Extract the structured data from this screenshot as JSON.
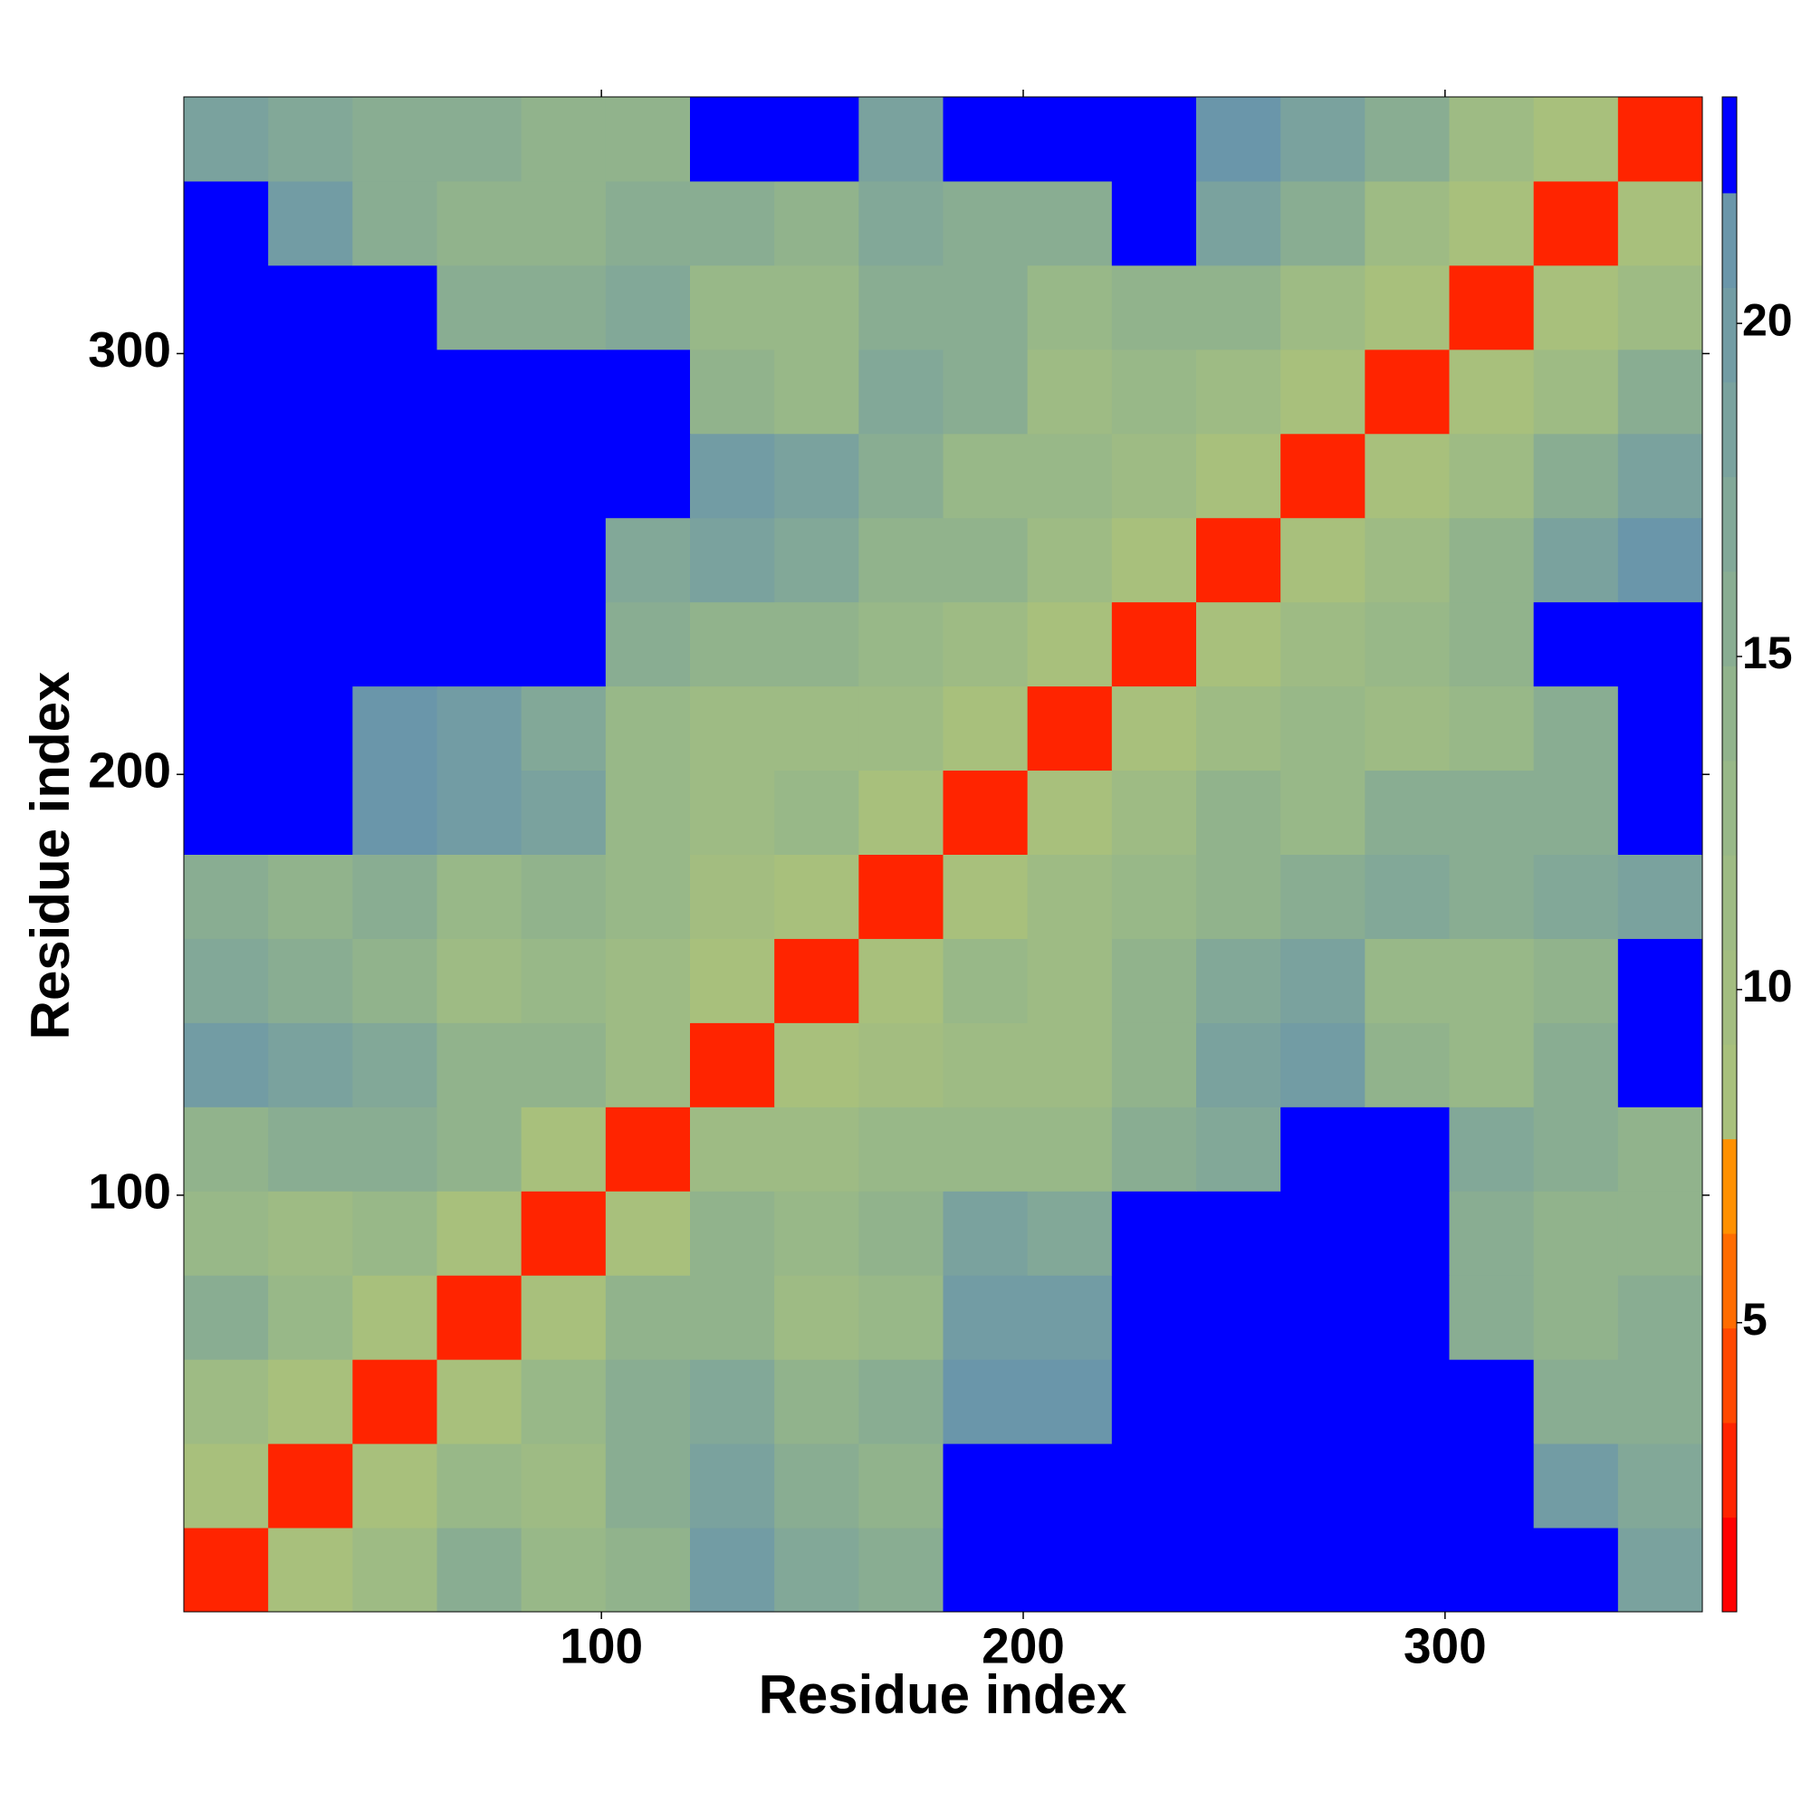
{
  "chart_data": {
    "type": "heatmap",
    "x_label": "Residue index",
    "y_label": "Residue index",
    "xlim": [
      1,
      361
    ],
    "ylim": [
      1,
      361
    ],
    "xticks": [
      100,
      200,
      300
    ],
    "yticks": [
      100,
      200,
      300
    ],
    "xbins": [
      1,
      21,
      41,
      61,
      81,
      101,
      121,
      141,
      161,
      181,
      201,
      221,
      241,
      261,
      281,
      301,
      321,
      341,
      361
    ],
    "ybins": [
      1,
      21,
      41,
      61,
      81,
      101,
      121,
      141,
      161,
      181,
      201,
      221,
      241,
      261,
      281,
      301,
      321,
      341,
      361
    ],
    "z": [
      [
        3,
        9,
        11,
        15,
        13,
        14,
        20,
        17,
        16,
        23,
        23,
        23,
        23,
        23,
        23,
        23,
        23,
        19
      ],
      [
        9,
        3,
        9,
        13,
        12,
        15,
        18,
        15,
        14,
        23,
        23,
        23,
        23,
        23,
        23,
        23,
        20,
        17
      ],
      [
        11,
        9,
        3,
        9,
        13,
        15,
        17,
        14,
        15,
        21,
        21,
        23,
        23,
        23,
        23,
        23,
        16,
        15
      ],
      [
        15,
        13,
        9,
        3,
        9,
        14,
        14,
        12,
        13,
        20,
        20,
        23,
        23,
        23,
        23,
        16,
        14,
        15
      ],
      [
        13,
        12,
        13,
        9,
        3,
        9,
        14,
        13,
        14,
        18,
        17,
        23,
        23,
        23,
        23,
        15,
        14,
        14
      ],
      [
        14,
        15,
        15,
        14,
        9,
        3,
        11,
        12,
        13,
        13,
        13,
        15,
        17,
        23,
        23,
        17,
        15,
        14
      ],
      [
        20,
        18,
        17,
        14,
        14,
        11,
        3,
        9,
        10,
        12,
        12,
        14,
        18,
        20,
        14,
        13,
        15,
        23
      ],
      [
        17,
        15,
        14,
        12,
        13,
        12,
        9,
        3,
        9,
        13,
        12,
        14,
        17,
        19,
        13,
        13,
        14,
        23
      ],
      [
        16,
        14,
        15,
        13,
        14,
        13,
        10,
        9,
        3,
        9,
        12,
        13,
        14,
        16,
        17,
        16,
        17,
        19
      ],
      [
        23,
        23,
        21,
        20,
        18,
        13,
        12,
        13,
        9,
        3,
        9,
        11,
        14,
        13,
        15,
        16,
        16,
        23
      ],
      [
        23,
        23,
        21,
        20,
        17,
        13,
        12,
        12,
        12,
        9,
        3,
        9,
        11,
        13,
        12,
        13,
        15,
        23
      ],
      [
        23,
        23,
        23,
        23,
        23,
        15,
        14,
        14,
        13,
        11,
        9,
        3,
        9,
        12,
        13,
        14,
        23,
        23
      ],
      [
        23,
        23,
        23,
        23,
        23,
        17,
        18,
        17,
        14,
        14,
        11,
        9,
        3,
        9,
        11,
        14,
        18,
        21
      ],
      [
        23,
        23,
        23,
        23,
        23,
        23,
        20,
        19,
        16,
        13,
        13,
        12,
        9,
        3,
        9,
        12,
        15,
        18
      ],
      [
        23,
        23,
        23,
        23,
        23,
        23,
        14,
        13,
        17,
        15,
        12,
        13,
        11,
        9,
        3,
        9,
        12,
        16
      ],
      [
        23,
        23,
        23,
        16,
        15,
        17,
        13,
        13,
        16,
        16,
        13,
        14,
        14,
        12,
        9,
        3,
        9,
        12
      ],
      [
        23,
        20,
        16,
        14,
        14,
        15,
        15,
        14,
        17,
        16,
        15,
        23,
        18,
        15,
        12,
        9,
        3,
        9
      ],
      [
        19,
        17,
        15,
        15,
        14,
        14,
        23,
        23,
        19,
        23,
        23,
        23,
        21,
        18,
        16,
        12,
        9,
        3
      ]
    ],
    "colorbar": {
      "lim": [
        0.66,
        23.4
      ],
      "ticks": [
        5,
        10,
        15,
        20
      ],
      "levels": [
        0.66,
        2.08,
        3.5,
        4.92,
        6.34,
        7.76,
        9.18,
        10.6,
        12.02,
        13.44,
        14.86,
        16.28,
        17.7,
        19.12,
        20.54,
        21.96,
        23.4
      ],
      "colors": [
        "#ff0000",
        "#ff2400",
        "#ff4800",
        "#ff6c00",
        "#ff9000",
        "#a8c07c",
        "#a3bd80",
        "#9ebb84",
        "#98b888",
        "#91b38c",
        "#89ad92",
        "#82a898",
        "#7aa29e",
        "#729ca4",
        "#6a96aa",
        "#0000ff"
      ]
    }
  }
}
